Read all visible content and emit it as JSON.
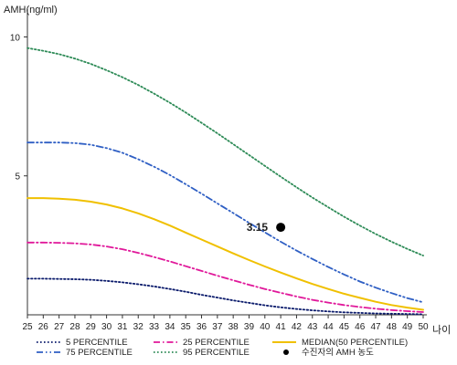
{
  "chart_data": {
    "type": "line",
    "ylabel": "AMH(ng/ml)",
    "xlabel": "나이",
    "x": [
      25,
      26,
      27,
      28,
      29,
      30,
      31,
      32,
      33,
      34,
      35,
      36,
      37,
      38,
      39,
      40,
      41,
      42,
      43,
      44,
      45,
      46,
      47,
      48,
      49,
      50
    ],
    "xlim": [
      25,
      50
    ],
    "ylim": [
      0,
      11
    ],
    "yticks": [
      5,
      10
    ],
    "grid": false,
    "legend_position": "bottom",
    "series": [
      {
        "name": "5 PERCENTILE",
        "color": "#0a1a6b",
        "dash": "dot",
        "values": [
          1.3,
          1.3,
          1.29,
          1.28,
          1.26,
          1.22,
          1.17,
          1.1,
          1.02,
          0.93,
          0.83,
          0.72,
          0.62,
          0.52,
          0.43,
          0.34,
          0.27,
          0.21,
          0.16,
          0.12,
          0.09,
          0.07,
          0.05,
          0.04,
          0.03,
          0.02
        ]
      },
      {
        "name": "25 PERCENTILE",
        "color": "#e0189a",
        "dash": "dashdot",
        "values": [
          2.6,
          2.6,
          2.59,
          2.57,
          2.53,
          2.46,
          2.36,
          2.23,
          2.08,
          1.92,
          1.75,
          1.58,
          1.41,
          1.24,
          1.08,
          0.93,
          0.79,
          0.66,
          0.54,
          0.44,
          0.35,
          0.28,
          0.22,
          0.17,
          0.13,
          0.1
        ]
      },
      {
        "name": "MEDIAN(50 PERCENTILE)",
        "color": "#f0c000",
        "dash": "solid",
        "values": [
          4.2,
          4.2,
          4.18,
          4.14,
          4.07,
          3.97,
          3.83,
          3.65,
          3.44,
          3.21,
          2.96,
          2.71,
          2.46,
          2.21,
          1.97,
          1.74,
          1.52,
          1.31,
          1.11,
          0.93,
          0.76,
          0.61,
          0.47,
          0.35,
          0.26,
          0.18
        ]
      },
      {
        "name": "75 PERCENTILE",
        "color": "#2f5fc4",
        "dash": "dashdotdot",
        "values": [
          6.2,
          6.2,
          6.2,
          6.18,
          6.12,
          6.0,
          5.83,
          5.6,
          5.33,
          5.03,
          4.7,
          4.36,
          4.01,
          3.66,
          3.31,
          2.97,
          2.63,
          2.31,
          2.01,
          1.72,
          1.45,
          1.2,
          0.98,
          0.78,
          0.6,
          0.45
        ]
      },
      {
        "name": "95 PERCENTILE",
        "color": "#2e8b57",
        "dash": "dot",
        "values": [
          9.6,
          9.5,
          9.38,
          9.22,
          9.03,
          8.8,
          8.55,
          8.27,
          7.96,
          7.63,
          7.28,
          6.91,
          6.53,
          6.14,
          5.75,
          5.36,
          4.97,
          4.59,
          4.22,
          3.87,
          3.53,
          3.21,
          2.91,
          2.63,
          2.37,
          2.13
        ]
      }
    ],
    "patient_point": {
      "name": "수진자의 AMH 농도",
      "x": 41,
      "y": 3.15,
      "label": "3.15",
      "color": "#000000"
    }
  }
}
